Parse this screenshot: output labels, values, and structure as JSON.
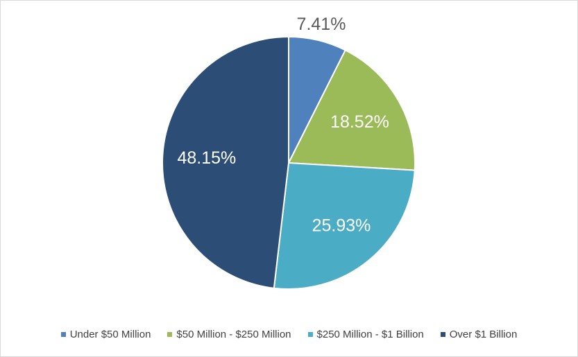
{
  "chart_data": {
    "type": "pie",
    "categories": [
      "Under $50 Million",
      "$50 Million - $250 Million",
      "$250 Million - $1 Billion",
      "Over $1 Billion"
    ],
    "values": [
      7.41,
      18.52,
      25.93,
      48.15
    ],
    "labels": [
      "7.41%",
      "18.52%",
      "25.93%",
      "48.15%"
    ],
    "colors": [
      "#4f81bd",
      "#9bbb59",
      "#4bacc6",
      "#2c4d75"
    ],
    "label_colors": [
      "#595959",
      "#ffffff",
      "#ffffff",
      "#ffffff"
    ],
    "start_angle_deg": 0,
    "direction": "clockwise",
    "legend_position": "bottom",
    "title": ""
  }
}
